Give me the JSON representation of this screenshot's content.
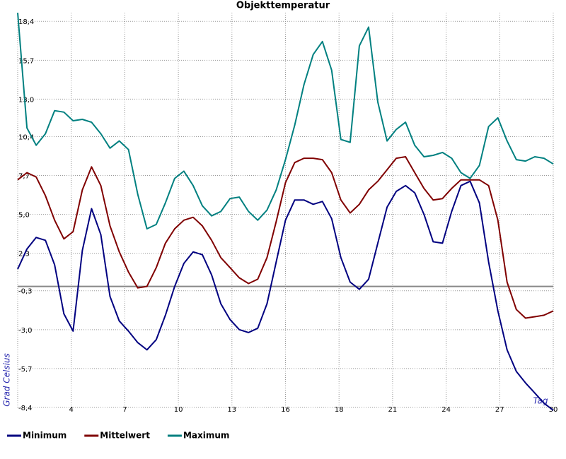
{
  "chart_data": {
    "type": "line",
    "title": "Objekttemperatur",
    "ylabel": "Grad Celsius",
    "xlabel": "Tag",
    "x": [
      1,
      1.5,
      2,
      2.5,
      3,
      3.5,
      4,
      4.5,
      5,
      5.5,
      6,
      6.5,
      7,
      7.5,
      8,
      8.5,
      9,
      9.5,
      10,
      10.5,
      11,
      11.5,
      12,
      12.5,
      13,
      13.5,
      14,
      14.5,
      15,
      15.5,
      16,
      16.5,
      17,
      17.5,
      18,
      18.5,
      19,
      19.5,
      20,
      20.5,
      21,
      21.5,
      22,
      22.5,
      23,
      23.5,
      24,
      24.5,
      25,
      25.5,
      26,
      26.5,
      27,
      27.5,
      28,
      28.5,
      29,
      29.5,
      30
    ],
    "series": [
      {
        "name": "Minimum",
        "color": "#000080",
        "values": [
          1.2,
          2.6,
          3.4,
          3.2,
          1.5,
          -1.9,
          -3.1,
          2.5,
          5.4,
          3.6,
          -0.7,
          -2.4,
          -3.1,
          -3.9,
          -4.4,
          -3.7,
          -2.0,
          0.0,
          1.6,
          2.4,
          2.2,
          0.8,
          -1.2,
          -2.3,
          -3.0,
          -3.2,
          -2.9,
          -1.2,
          1.7,
          4.6,
          6.0,
          6.0,
          5.7,
          5.9,
          4.7,
          2.0,
          0.3,
          -0.2,
          0.5,
          3.0,
          5.5,
          6.6,
          7.0,
          6.5,
          5.0,
          3.1,
          3.0,
          5.2,
          7.0,
          7.3,
          5.8,
          1.7,
          -1.7,
          -4.4,
          -5.9,
          -6.7,
          -7.4,
          -8.1,
          -8.6
        ]
      },
      {
        "name": "Mittelwert",
        "color": "#800000",
        "values": [
          7.4,
          7.9,
          7.6,
          6.3,
          4.6,
          3.3,
          3.8,
          6.7,
          8.3,
          7.0,
          4.2,
          2.4,
          1.0,
          -0.1,
          0.0,
          1.3,
          3.0,
          4.0,
          4.6,
          4.8,
          4.2,
          3.2,
          2.0,
          1.3,
          0.6,
          0.2,
          0.5,
          2.0,
          4.5,
          7.2,
          8.6,
          8.9,
          8.9,
          8.8,
          7.9,
          6.0,
          5.1,
          5.7,
          6.7,
          7.3,
          8.1,
          8.9,
          9.0,
          7.9,
          6.8,
          6.0,
          6.1,
          6.8,
          7.4,
          7.4,
          7.4,
          7.0,
          4.6,
          0.3,
          -1.6,
          -2.2,
          -2.1,
          -2.0,
          -1.7
        ]
      },
      {
        "name": "Maximum",
        "color": "#008080",
        "values": [
          19.0,
          11.0,
          9.8,
          10.6,
          12.2,
          12.1,
          11.5,
          11.6,
          11.4,
          10.6,
          9.6,
          10.1,
          9.5,
          6.4,
          4.0,
          4.3,
          5.8,
          7.5,
          8.0,
          7.0,
          5.6,
          4.9,
          5.2,
          6.1,
          6.2,
          5.2,
          4.6,
          5.3,
          6.7,
          8.8,
          11.2,
          14.0,
          16.1,
          17.0,
          15.0,
          10.2,
          10.0,
          16.7,
          18.0,
          12.8,
          10.1,
          10.9,
          11.4,
          9.8,
          9.0,
          9.1,
          9.3,
          8.9,
          7.9,
          7.5,
          8.4,
          11.1,
          11.7,
          10.1,
          8.8,
          8.7,
          9.0,
          8.9,
          8.5
        ]
      }
    ],
    "xlim": [
      1,
      30
    ],
    "ylim": [
      -8.4,
      19.0
    ],
    "xticks": [
      {
        "value": 3.9,
        "label": "4"
      },
      {
        "value": 6.8,
        "label": "7"
      },
      {
        "value": 9.7,
        "label": "10"
      },
      {
        "value": 12.6,
        "label": "13"
      },
      {
        "value": 15.5,
        "label": "16"
      },
      {
        "value": 18.4,
        "label": "18"
      },
      {
        "value": 21.3,
        "label": "21"
      },
      {
        "value": 24.2,
        "label": "24"
      },
      {
        "value": 27.1,
        "label": "27"
      },
      {
        "value": 30,
        "label": "30"
      }
    ],
    "yticks": [
      {
        "value": 18.4,
        "label": "18,4"
      },
      {
        "value": 15.7,
        "label": "15,7"
      },
      {
        "value": 13.0,
        "label": "13,0"
      },
      {
        "value": 10.4,
        "label": "10,4"
      },
      {
        "value": 7.7,
        "label": "7,7"
      },
      {
        "value": 5.0,
        "label": "5,0"
      },
      {
        "value": 2.3,
        "label": "2,3"
      },
      {
        "value": -0.3,
        "label": "-0,3"
      },
      {
        "value": -3.0,
        "label": "-3,0"
      },
      {
        "value": -5.7,
        "label": "-5,7"
      },
      {
        "value": -8.4,
        "label": "-8,4"
      }
    ],
    "grid": true,
    "zero_line": true,
    "legend": "bottom"
  }
}
